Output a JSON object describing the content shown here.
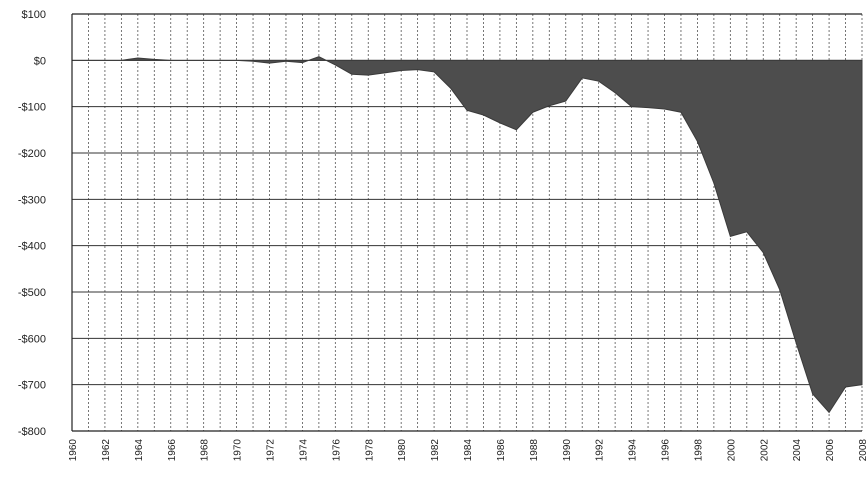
{
  "chart_data": {
    "type": "area",
    "title": "",
    "xlabel": "",
    "ylabel": "",
    "xlim": [
      1960,
      2008
    ],
    "ylim": [
      -800,
      100
    ],
    "grid": true,
    "legend": "none",
    "colors": {
      "fill": "#4d4d4d",
      "grid": "#555555",
      "text": "#222222"
    },
    "y_ticks": [
      {
        "value": 100,
        "label": "$100"
      },
      {
        "value": 0,
        "label": "$0"
      },
      {
        "value": -100,
        "label": "-$100"
      },
      {
        "value": -200,
        "label": "-$200"
      },
      {
        "value": -300,
        "label": "-$300"
      },
      {
        "value": -400,
        "label": "-$400"
      },
      {
        "value": -500,
        "label": "-$500"
      },
      {
        "value": -600,
        "label": "-$600"
      },
      {
        "value": -700,
        "label": "-$700"
      },
      {
        "value": -800,
        "label": "-$800"
      }
    ],
    "x_ticks": [
      "1960",
      "1962",
      "1964",
      "1966",
      "1968",
      "1970",
      "1972",
      "1974",
      "1976",
      "1978",
      "1980",
      "1982",
      "1984",
      "1986",
      "1988",
      "1990",
      "1992",
      "1994",
      "1996",
      "1998",
      "2000",
      "2002",
      "2004",
      "2006",
      "2008"
    ],
    "x": [
      1960,
      1961,
      1962,
      1963,
      1964,
      1965,
      1966,
      1967,
      1968,
      1969,
      1970,
      1971,
      1972,
      1973,
      1974,
      1975,
      1976,
      1977,
      1978,
      1979,
      1980,
      1981,
      1982,
      1983,
      1984,
      1985,
      1986,
      1987,
      1988,
      1989,
      1990,
      1991,
      1992,
      1993,
      1994,
      1995,
      1996,
      1997,
      1998,
      1999,
      2000,
      2001,
      2002,
      2003,
      2004,
      2005,
      2006,
      2007,
      2008
    ],
    "values": [
      0,
      0,
      0,
      0,
      5,
      2,
      0,
      0,
      0,
      0,
      0,
      -2,
      -6,
      -2,
      -5,
      8,
      -10,
      -30,
      -32,
      -27,
      -22,
      -20,
      -25,
      -60,
      -108,
      -118,
      -135,
      -150,
      -112,
      -98,
      -88,
      -38,
      -45,
      -70,
      -100,
      -102,
      -105,
      -112,
      -175,
      -265,
      -380,
      -370,
      -415,
      -495,
      -610,
      -720,
      -760,
      -705,
      -700
    ]
  }
}
